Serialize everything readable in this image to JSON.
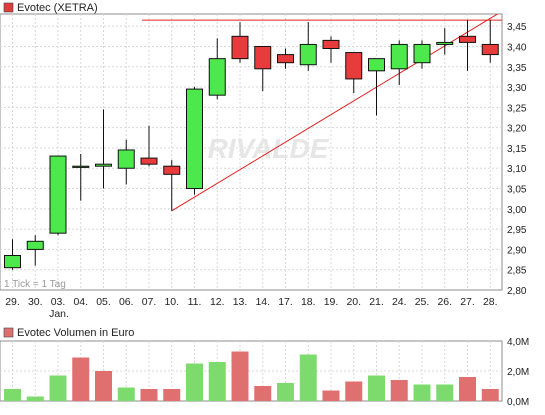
{
  "chart_data": [
    {
      "type": "candlestick",
      "title": "Evotec (XETRA)",
      "legend_marker_color": "#e03c3c",
      "x_labels": [
        "29.",
        "30.",
        "03.",
        "04.",
        "05.",
        "06.",
        "07.",
        "10.",
        "11.",
        "12.",
        "13.",
        "14.",
        "17.",
        "18.",
        "19.",
        "20.",
        "21.",
        "24.",
        "25.",
        "26.",
        "27.",
        "28."
      ],
      "x_sublabel": {
        "index": 2,
        "text": "Jan."
      },
      "ylim": [
        2.8,
        3.48
      ],
      "y_ticks": [
        "2,80",
        "2,85",
        "2,90",
        "2,95",
        "3,00",
        "3,05",
        "3,10",
        "3,15",
        "3,20",
        "3,25",
        "3,30",
        "3,35",
        "3,40",
        "3,45"
      ],
      "grid": true,
      "resolution_note": "1 Tick = 1 Tag",
      "watermark": "RIVALDE",
      "up_color": "#4ce84c",
      "down_color": "#e83c3c",
      "trendline_color": "#e02020",
      "candles": [
        {
          "o": 2.855,
          "h": 2.925,
          "l": 2.85,
          "c": 2.885
        },
        {
          "o": 2.9,
          "h": 2.935,
          "l": 2.86,
          "c": 2.92
        },
        {
          "o": 2.94,
          "h": 3.13,
          "l": 2.935,
          "c": 3.13
        },
        {
          "o": 3.105,
          "h": 3.135,
          "l": 3.02,
          "c": 3.105
        },
        {
          "o": 3.105,
          "h": 3.245,
          "l": 3.05,
          "c": 3.11
        },
        {
          "o": 3.1,
          "h": 3.17,
          "l": 3.06,
          "c": 3.145
        },
        {
          "o": 3.125,
          "h": 3.205,
          "l": 3.105,
          "c": 3.11
        },
        {
          "o": 3.105,
          "h": 3.12,
          "l": 2.995,
          "c": 3.085
        },
        {
          "o": 3.05,
          "h": 3.3,
          "l": 3.035,
          "c": 3.295
        },
        {
          "o": 3.28,
          "h": 3.42,
          "l": 3.27,
          "c": 3.37
        },
        {
          "o": 3.425,
          "h": 3.46,
          "l": 3.36,
          "c": 3.37
        },
        {
          "o": 3.4,
          "h": 3.4,
          "l": 3.29,
          "c": 3.345
        },
        {
          "o": 3.38,
          "h": 3.395,
          "l": 3.345,
          "c": 3.36
        },
        {
          "o": 3.355,
          "h": 3.46,
          "l": 3.34,
          "c": 3.405
        },
        {
          "o": 3.415,
          "h": 3.425,
          "l": 3.36,
          "c": 3.395
        },
        {
          "o": 3.385,
          "h": 3.385,
          "l": 3.285,
          "c": 3.32
        },
        {
          "o": 3.34,
          "h": 3.37,
          "l": 3.23,
          "c": 3.37
        },
        {
          "o": 3.345,
          "h": 3.415,
          "l": 3.305,
          "c": 3.405
        },
        {
          "o": 3.36,
          "h": 3.415,
          "l": 3.345,
          "c": 3.405
        },
        {
          "o": 3.405,
          "h": 3.445,
          "l": 3.38,
          "c": 3.41
        },
        {
          "o": 3.425,
          "h": 3.465,
          "l": 3.34,
          "c": 3.41
        },
        {
          "o": 3.405,
          "h": 3.465,
          "l": 3.36,
          "c": 3.38
        }
      ],
      "trend_lines": [
        {
          "from": {
            "x_index": 7,
            "y": 2.995
          },
          "to": {
            "x_index": 22.5,
            "y": 3.52
          }
        },
        {
          "from": {
            "x_index": 5.7,
            "y": 3.465
          },
          "to": {
            "x_index": 22.5,
            "y": 3.465
          }
        }
      ]
    },
    {
      "type": "bar",
      "title": "Evotec Volumen in Euro",
      "legend_marker_color": "#e07070",
      "x_labels": [
        "29.",
        "30.",
        "03.",
        "04.",
        "05.",
        "06.",
        "07.",
        "10.",
        "11.",
        "12.",
        "13.",
        "14.",
        "17.",
        "18.",
        "19.",
        "20.",
        "21.",
        "24.",
        "25.",
        "26.",
        "27.",
        "28."
      ],
      "ylim": [
        0,
        4.0
      ],
      "y_ticks": [
        "0,0M",
        "2,0M",
        "4,0M"
      ],
      "y_tick_values": [
        0,
        2.0,
        4.0
      ],
      "unit": "M",
      "grid": true,
      "up_color": "#7ddb6e",
      "down_color": "#e07070",
      "values": [
        0.8,
        0.3,
        1.7,
        2.9,
        2.0,
        0.9,
        0.8,
        0.8,
        2.5,
        2.6,
        3.3,
        1.0,
        1.2,
        3.1,
        0.7,
        1.3,
        1.7,
        1.4,
        1.1,
        1.1,
        1.6,
        0.8
      ],
      "direction": [
        "up",
        "up",
        "up",
        "down",
        "down",
        "up",
        "down",
        "down",
        "up",
        "up",
        "down",
        "down",
        "up",
        "up",
        "down",
        "down",
        "up",
        "down",
        "up",
        "up",
        "down",
        "down"
      ]
    }
  ]
}
